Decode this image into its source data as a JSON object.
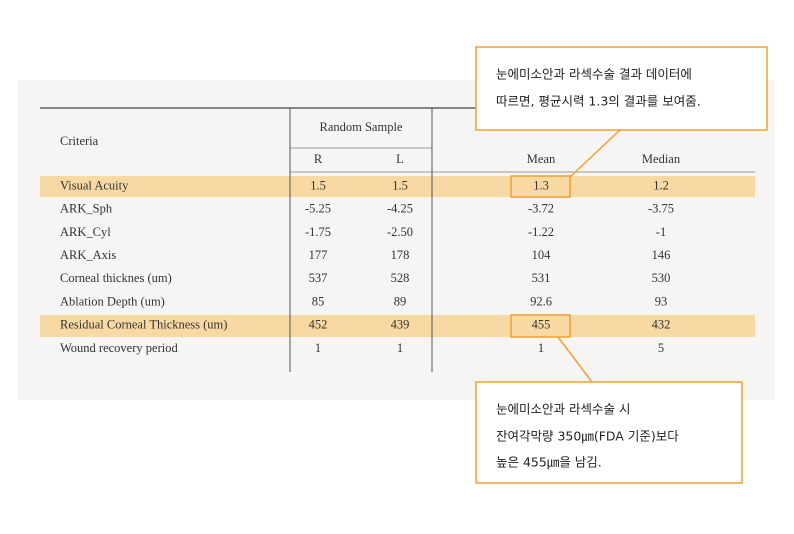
{
  "table": {
    "header": {
      "criteria": "Criteria",
      "group": "Random Sample",
      "columns": [
        "R",
        "L",
        "Mean",
        "Median"
      ]
    },
    "rows": [
      [
        "Visual Acuity",
        "1.5",
        "1.5",
        "1.3",
        "1.2"
      ],
      [
        "ARK_Sph",
        "-5.25",
        "-4.25",
        "-3.72",
        "-3.75"
      ],
      [
        "ARK_Cyl",
        "-1.75",
        "-2.50",
        "-1.22",
        "-1"
      ],
      [
        "ARK_Axis",
        "177",
        "178",
        "104",
        "146"
      ],
      [
        "Corneal thicknes (um)",
        "537",
        "528",
        "531",
        "530"
      ],
      [
        "Ablation Depth (um)",
        "85",
        "89",
        "92.6",
        "93"
      ],
      [
        "Residual Corneal Thickness (um)",
        "452",
        "439",
        "455",
        "432"
      ],
      [
        "Wound recovery period",
        "1",
        "1",
        "1",
        "5"
      ]
    ]
  },
  "callouts": [
    {
      "lines": [
        "눈에미소안과 라섹수술 결과 데이터에",
        "따르면, 평균시력 1.3의 결과를 보여줌."
      ]
    },
    {
      "lines": [
        "눈에미소안과 라섹수술 시",
        "잔여각막량 350㎛(FDA 기준)보다",
        "높은 455㎛을 남김."
      ]
    }
  ]
}
